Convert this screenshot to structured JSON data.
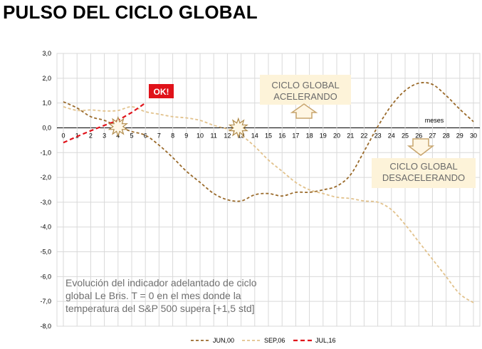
{
  "title": "PULSO DEL CICLO GLOBAL",
  "chart_data": {
    "type": "line",
    "title": "PULSO DEL CICLO GLOBAL",
    "xlabel": "meses",
    "ylabel": "",
    "xlim": [
      0,
      30
    ],
    "ylim": [
      -8,
      3
    ],
    "x_ticks": [
      0,
      1,
      2,
      3,
      4,
      5,
      6,
      7,
      8,
      9,
      10,
      11,
      12,
      13,
      14,
      15,
      16,
      17,
      18,
      19,
      20,
      21,
      22,
      23,
      24,
      25,
      26,
      27,
      28,
      29,
      30
    ],
    "y_ticks": [
      "3,0",
      "2,0",
      "1,0",
      "0,0",
      "-1,0",
      "-2,0",
      "-3,0",
      "-4,0",
      "-5,0",
      "-6,0",
      "-7,0",
      "-8,0"
    ],
    "grid": true,
    "legend_position": "bottom-center",
    "series": [
      {
        "name": "JUN,00",
        "color": "#9a6a2a",
        "style": "dashed",
        "x": [
          0,
          1,
          2,
          3,
          4,
          5,
          6,
          7,
          8,
          9,
          10,
          11,
          12,
          13,
          14,
          15,
          16,
          17,
          18,
          19,
          20,
          21,
          22,
          23,
          24,
          25,
          26,
          27,
          28,
          29,
          30
        ],
        "y": [
          1.05,
          0.8,
          0.45,
          0.3,
          0.05,
          -0.15,
          -0.3,
          -0.7,
          -1.2,
          -1.75,
          -2.2,
          -2.65,
          -2.9,
          -2.95,
          -2.7,
          -2.65,
          -2.75,
          -2.6,
          -2.6,
          -2.5,
          -2.35,
          -1.9,
          -0.95,
          0.05,
          0.9,
          1.5,
          1.8,
          1.75,
          1.3,
          0.75,
          0.25
        ]
      },
      {
        "name": "SEP,06",
        "color": "#e2c28c",
        "style": "dashed",
        "x": [
          0,
          1,
          2,
          3,
          4,
          5,
          6,
          7,
          8,
          9,
          10,
          11,
          12,
          13,
          14,
          15,
          16,
          17,
          18,
          19,
          20,
          21,
          22,
          23,
          24,
          25,
          26,
          27,
          28,
          29,
          30
        ],
        "y": [
          0.85,
          0.7,
          0.72,
          0.68,
          0.7,
          0.85,
          0.65,
          0.55,
          0.45,
          0.4,
          0.3,
          0.1,
          -0.05,
          -0.3,
          -0.75,
          -1.3,
          -1.75,
          -2.2,
          -2.5,
          -2.65,
          -2.8,
          -2.85,
          -2.95,
          -3.0,
          -3.3,
          -3.9,
          -4.6,
          -5.3,
          -6.0,
          -6.7,
          -7.05
        ]
      },
      {
        "name": "JUL,16",
        "color": "#e0121a",
        "style": "dashed",
        "x": [
          0,
          1,
          2,
          3,
          4,
          5,
          6
        ],
        "y": [
          -0.6,
          -0.35,
          -0.12,
          0.1,
          0.3,
          0.62,
          1.0
        ]
      }
    ],
    "annotations": [
      {
        "id": "ok",
        "text": "OK!"
      },
      {
        "id": "accelerating",
        "line1": "CICLO GLOBAL",
        "line2": "ACELERANDO"
      },
      {
        "id": "decelerating",
        "line1": "CICLO GLOBAL",
        "line2": "DESACELERANDO"
      },
      {
        "id": "note",
        "lines": [
          "Evolución del indicador adelantado de ciclo",
          "global Le Bris. T = 0 en el mes donde la",
          "temperatura del S&P 500 supera [+1,5 std]"
        ]
      }
    ]
  }
}
